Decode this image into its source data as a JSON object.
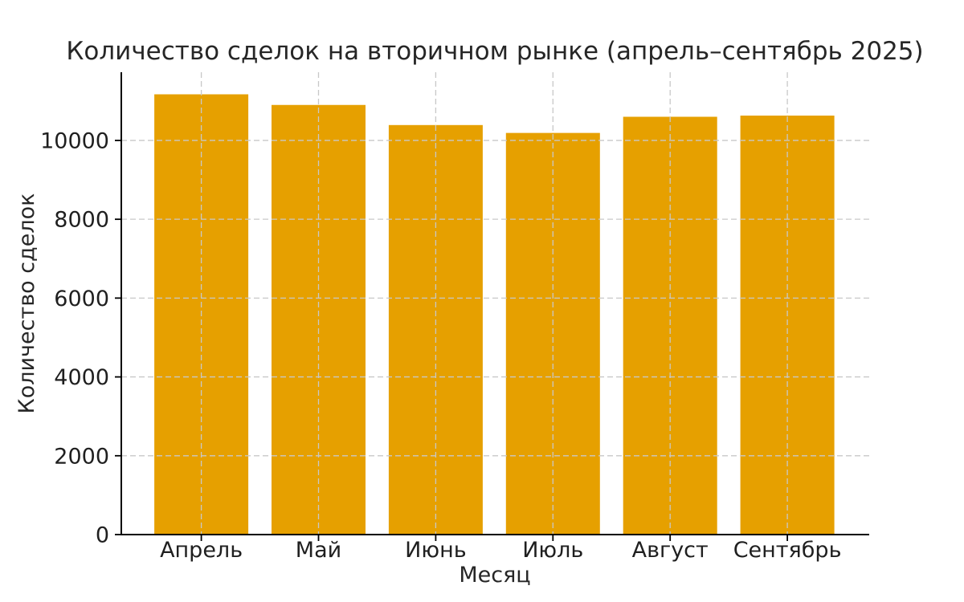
{
  "chart_data": {
    "type": "bar",
    "title": "Количество сделок на вторичном рынке (апрель–сентябрь 2025)",
    "xlabel": "Месяц",
    "ylabel": "Количество сделок",
    "categories": [
      "Апрель",
      "Май",
      "Июнь",
      "Июль",
      "Август",
      "Сентябрь"
    ],
    "values": [
      11170,
      10900,
      10390,
      10190,
      10600,
      10630
    ],
    "yticks": [
      0,
      2000,
      4000,
      6000,
      8000,
      10000
    ],
    "ylim": [
      0,
      11730
    ],
    "grid": true,
    "grid_axes": "both",
    "grid_style": "dashed",
    "grid_drawn_over_bars": true,
    "legend": false,
    "spines": [
      "left",
      "bottom"
    ],
    "colors": {
      "bar": "#E6A000",
      "grid": "#c8c8c8",
      "axis": "#000000",
      "text": "#1f1f1f",
      "title_text": "#262626",
      "background": "#ffffff"
    }
  }
}
